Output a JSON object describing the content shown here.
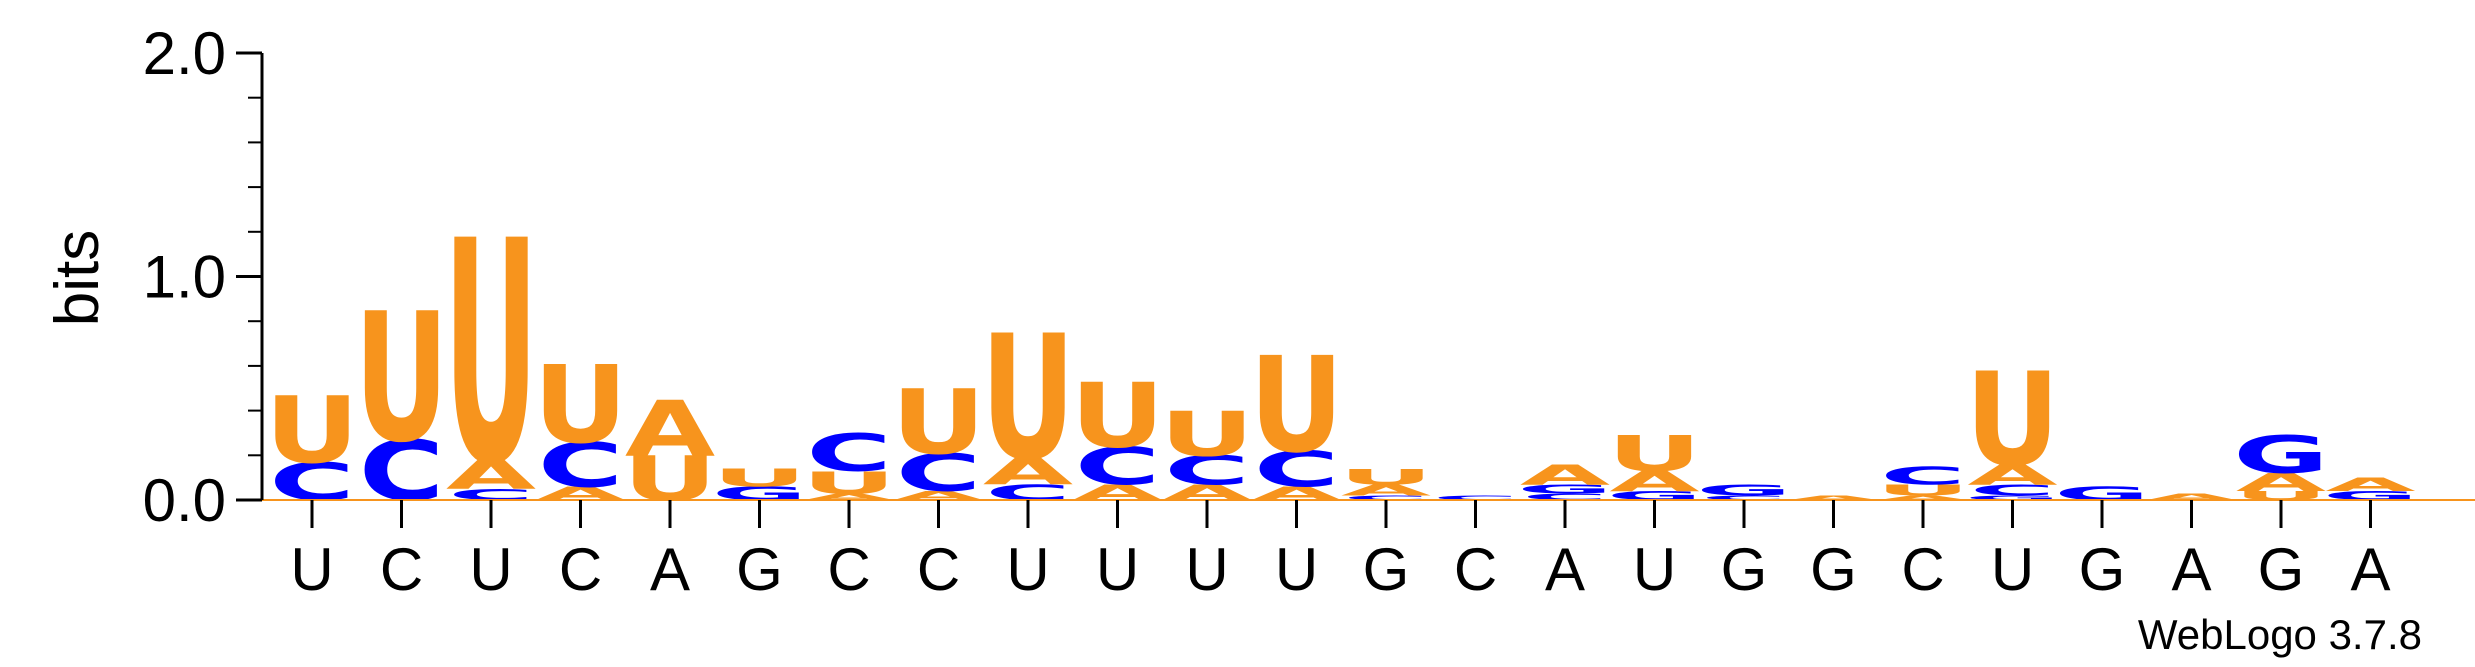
{
  "chart_data": {
    "type": "sequence-logo",
    "ylabel": "bits",
    "ylim": [
      0,
      2.0
    ],
    "yticks": [
      "0.0",
      "1.0",
      "2.0"
    ],
    "colors": {
      "A": "#f7941d",
      "C": "#0000ff",
      "G": "#0000ff",
      "U": "#f7941d"
    },
    "consensus": [
      "U",
      "C",
      "U",
      "C",
      "A",
      "G",
      "C",
      "C",
      "U",
      "U",
      "U",
      "U",
      "G",
      "C",
      "A",
      "U",
      "G",
      "G",
      "C",
      "U",
      "G",
      "A",
      "G",
      "A"
    ],
    "positions": [
      {
        "label": "U",
        "stack": [
          {
            "base": "C",
            "bits": 0.17
          },
          {
            "base": "U",
            "bits": 0.3
          }
        ]
      },
      {
        "label": "C",
        "stack": [
          {
            "base": "C",
            "bits": 0.27
          },
          {
            "base": "U",
            "bits": 0.58
          }
        ]
      },
      {
        "label": "U",
        "stack": [
          {
            "base": "C",
            "bits": 0.05
          },
          {
            "base": "A",
            "bits": 0.13
          },
          {
            "base": "U",
            "bits": 1.0
          }
        ]
      },
      {
        "label": "C",
        "stack": [
          {
            "base": "A",
            "bits": 0.06
          },
          {
            "base": "C",
            "bits": 0.2
          },
          {
            "base": "U",
            "bits": 0.35
          }
        ]
      },
      {
        "label": "A",
        "stack": [
          {
            "base": "U",
            "bits": 0.2
          },
          {
            "base": "A",
            "bits": 0.25
          }
        ]
      },
      {
        "label": "G",
        "stack": [
          {
            "base": "G",
            "bits": 0.06
          },
          {
            "base": "U",
            "bits": 0.08
          }
        ]
      },
      {
        "label": "C",
        "stack": [
          {
            "base": "A",
            "bits": 0.03
          },
          {
            "base": "U",
            "bits": 0.1
          },
          {
            "base": "C",
            "bits": 0.17
          }
        ]
      },
      {
        "label": "C",
        "stack": [
          {
            "base": "A",
            "bits": 0.04
          },
          {
            "base": "C",
            "bits": 0.17
          },
          {
            "base": "U",
            "bits": 0.29
          }
        ]
      },
      {
        "label": "U",
        "stack": [
          {
            "base": "C",
            "bits": 0.07
          },
          {
            "base": "A",
            "bits": 0.12
          },
          {
            "base": "U",
            "bits": 0.56
          }
        ]
      },
      {
        "label": "U",
        "stack": [
          {
            "base": "A",
            "bits": 0.07
          },
          {
            "base": "C",
            "bits": 0.17
          },
          {
            "base": "U",
            "bits": 0.29
          }
        ]
      },
      {
        "label": "U",
        "stack": [
          {
            "base": "A",
            "bits": 0.07
          },
          {
            "base": "C",
            "bits": 0.13
          },
          {
            "base": "U",
            "bits": 0.2
          }
        ]
      },
      {
        "label": "U",
        "stack": [
          {
            "base": "A",
            "bits": 0.06
          },
          {
            "base": "C",
            "bits": 0.16
          },
          {
            "base": "U",
            "bits": 0.43
          }
        ]
      },
      {
        "label": "G",
        "stack": [
          {
            "base": "C",
            "bits": 0.02
          },
          {
            "base": "A",
            "bits": 0.05
          },
          {
            "base": "U",
            "bits": 0.07
          }
        ]
      },
      {
        "label": "C",
        "stack": [
          {
            "base": "C",
            "bits": 0.02
          }
        ]
      },
      {
        "label": "A",
        "stack": [
          {
            "base": "C",
            "bits": 0.03
          },
          {
            "base": "G",
            "bits": 0.04
          },
          {
            "base": "A",
            "bits": 0.09
          }
        ]
      },
      {
        "label": "U",
        "stack": [
          {
            "base": "G",
            "bits": 0.04
          },
          {
            "base": "A",
            "bits": 0.09
          },
          {
            "base": "U",
            "bits": 0.16
          }
        ]
      },
      {
        "label": "G",
        "stack": [
          {
            "base": "C",
            "bits": 0.02
          },
          {
            "base": "G",
            "bits": 0.05
          }
        ]
      },
      {
        "label": "G",
        "stack": [
          {
            "base": "A",
            "bits": 0.02
          }
        ]
      },
      {
        "label": "C",
        "stack": [
          {
            "base": "A",
            "bits": 0.02
          },
          {
            "base": "U",
            "bits": 0.05
          },
          {
            "base": "C",
            "bits": 0.08
          }
        ]
      },
      {
        "label": "U",
        "stack": [
          {
            "base": "G",
            "bits": 0.02
          },
          {
            "base": "C",
            "bits": 0.05
          },
          {
            "base": "A",
            "bits": 0.09
          },
          {
            "base": "U",
            "bits": 0.42
          }
        ]
      },
      {
        "label": "G",
        "stack": [
          {
            "base": "G",
            "bits": 0.06
          }
        ]
      },
      {
        "label": "A",
        "stack": [
          {
            "base": "A",
            "bits": 0.03
          }
        ]
      },
      {
        "label": "G",
        "stack": [
          {
            "base": "U",
            "bits": 0.04
          },
          {
            "base": "A",
            "bits": 0.08
          },
          {
            "base": "G",
            "bits": 0.17
          }
        ]
      },
      {
        "label": "A",
        "stack": [
          {
            "base": "G",
            "bits": 0.04
          },
          {
            "base": "A",
            "bits": 0.06
          }
        ]
      }
    ]
  },
  "footer": {
    "credit": "WebLogo 3.7.8"
  }
}
